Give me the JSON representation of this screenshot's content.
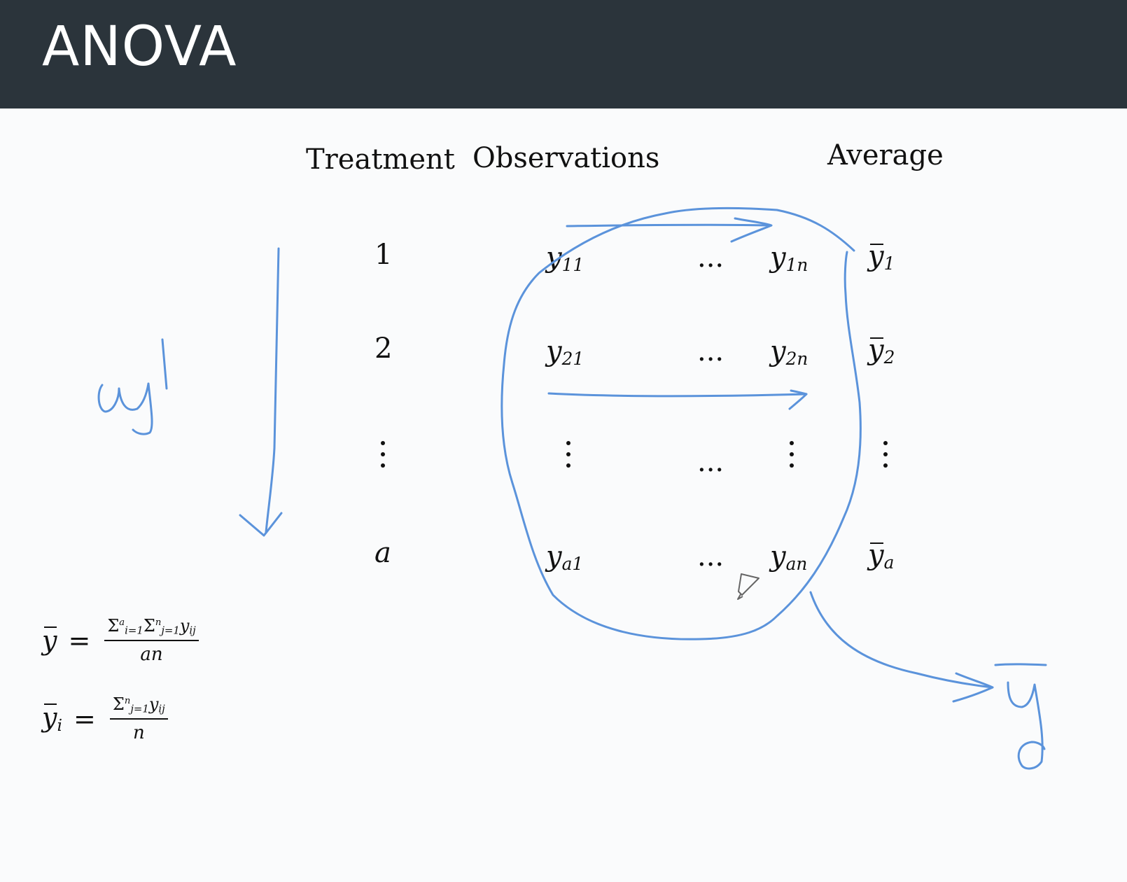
{
  "header": {
    "title": "ANOVA"
  },
  "table": {
    "headers": {
      "treatment": "Treatment",
      "observations": "Observations",
      "average": "Average"
    },
    "rows": [
      {
        "treatment": "1",
        "first_base": "y",
        "first_sub": "11",
        "ellipsis": "...",
        "last_base": "y",
        "last_sub": "1n",
        "avg_base": "y",
        "avg_sub": "1"
      },
      {
        "treatment": "2",
        "first_base": "y",
        "first_sub": "21",
        "ellipsis": "...",
        "last_base": "y",
        "last_sub": "2n",
        "avg_base": "y",
        "avg_sub": "2"
      },
      {
        "ellipsis": "..."
      },
      {
        "treatment": "a",
        "first_base": "y",
        "first_sub": "a1",
        "ellipsis": "...",
        "last_base": "y",
        "last_sub": "an",
        "avg_base": "y",
        "avg_sub": "a"
      }
    ]
  },
  "formulas": {
    "grand_mean": {
      "lhs": "y",
      "eq": "=",
      "sum1": "Σ",
      "sum1_sup": "a",
      "sum1_sub": "i=1",
      "sum2": "Σ",
      "sum2_sup": "n",
      "sum2_sub": "j=1",
      "term": "y",
      "term_sub": "ij",
      "denominator": "an"
    },
    "group_mean": {
      "lhs": "y",
      "lhs_sub": "i",
      "eq": "=",
      "sum": "Σ",
      "sum_sup": "n",
      "sum_sub": "j=1",
      "term": "y",
      "term_sub": "ij",
      "denominator": "n"
    }
  },
  "annotations": {
    "ink_color": "#5b93db",
    "icons": [
      "pencil-cursor-icon"
    ]
  }
}
